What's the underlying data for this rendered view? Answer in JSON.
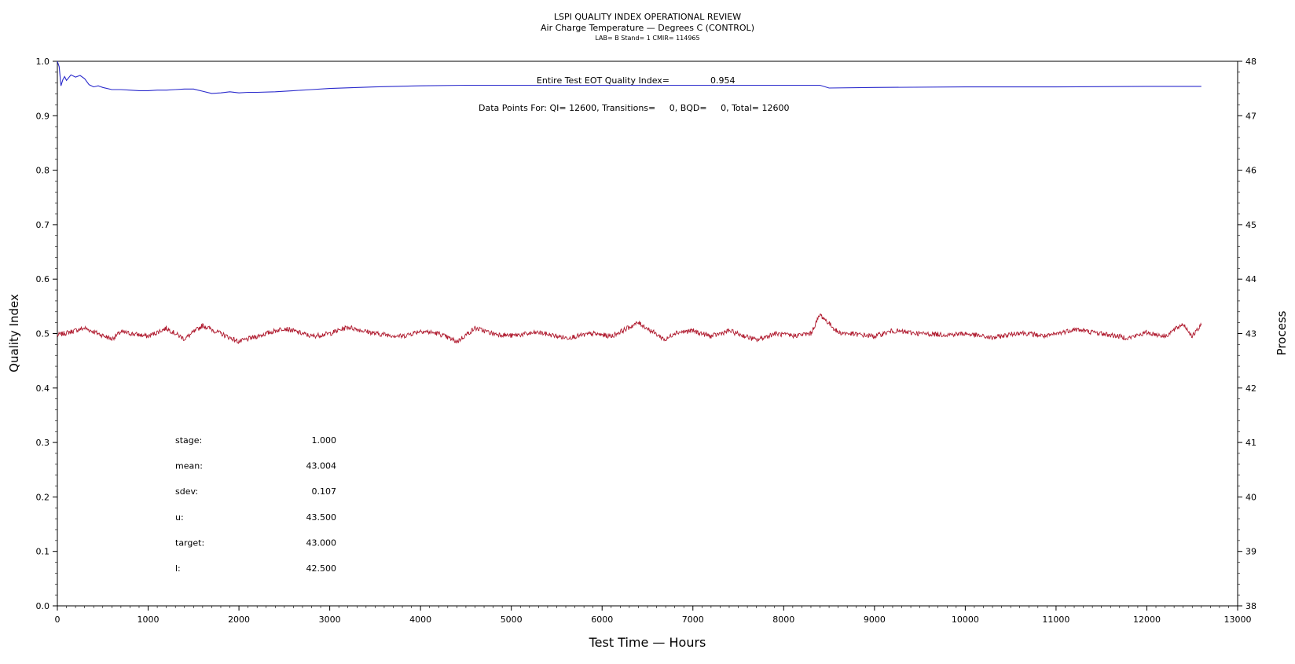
{
  "chart_data": {
    "type": "line",
    "title": "LSPI QUALITY INDEX OPERATIONAL REVIEW",
    "subtitle": "Air Charge Temperature — Degrees C (CONTROL)",
    "subtitle2": "LAB= B Stand= 1 CMIR= 114965",
    "xlabel": "Test Time — Hours",
    "ylabel": "Quality Index",
    "y2label": "Process",
    "xlim": [
      0,
      13000
    ],
    "ylim": [
      0.0,
      1.0
    ],
    "y2lim": [
      38,
      48
    ],
    "xticks": [
      "0",
      "1000",
      "2000",
      "3000",
      "4000",
      "5000",
      "6000",
      "7000",
      "8000",
      "9000",
      "10000",
      "11000",
      "12000",
      "13000"
    ],
    "yticks": [
      "0.0",
      "0.1",
      "0.2",
      "0.3",
      "0.4",
      "0.5",
      "0.6",
      "0.7",
      "0.8",
      "0.9",
      "1.0"
    ],
    "y2ticks": [
      "38",
      "39",
      "40",
      "41",
      "42",
      "43",
      "44",
      "45",
      "46",
      "47",
      "48"
    ],
    "grid": false,
    "annotations": {
      "qi_label": "Entire Test EOT Quality Index=",
      "qi_value": "0.954",
      "points_text": "Data Points For: QI= 12600, Transitions=     0, BQD=     0, Total= 12600"
    },
    "stats": [
      {
        "label": "stage:",
        "value": "1.000"
      },
      {
        "label": "mean:",
        "value": "43.004"
      },
      {
        "label": "sdev:",
        "value": "0.107"
      },
      {
        "label": "u:",
        "value": "43.500"
      },
      {
        "label": "target:",
        "value": "43.000"
      },
      {
        "label": "l:",
        "value": "42.500"
      }
    ],
    "series": [
      {
        "color": "#2a2acc",
        "axis": "left",
        "x": [
          0,
          20,
          40,
          60,
          80,
          100,
          150,
          200,
          250,
          300,
          350,
          400,
          450,
          500,
          600,
          700,
          800,
          900,
          1000,
          1100,
          1200,
          1300,
          1400,
          1500,
          1600,
          1700,
          1800,
          1900,
          2000,
          2100,
          2200,
          2400,
          2600,
          2800,
          3000,
          3500,
          4000,
          4500,
          5000,
          5500,
          6000,
          6500,
          7000,
          7500,
          8000,
          8400,
          8500,
          9000,
          10000,
          11000,
          12000,
          12600
        ],
        "values": [
          1.0,
          0.99,
          0.955,
          0.966,
          0.972,
          0.965,
          0.975,
          0.971,
          0.974,
          0.968,
          0.957,
          0.953,
          0.955,
          0.952,
          0.948,
          0.948,
          0.947,
          0.946,
          0.946,
          0.947,
          0.947,
          0.948,
          0.949,
          0.949,
          0.945,
          0.941,
          0.942,
          0.944,
          0.942,
          0.943,
          0.943,
          0.944,
          0.946,
          0.948,
          0.95,
          0.953,
          0.955,
          0.956,
          0.956,
          0.956,
          0.956,
          0.956,
          0.956,
          0.956,
          0.956,
          0.956,
          0.951,
          0.952,
          0.953,
          0.953,
          0.954,
          0.954
        ]
      },
      {
        "color": "#b01c30",
        "axis": "right",
        "x": [
          0,
          300,
          600,
          700,
          1000,
          1200,
          1400,
          1600,
          1800,
          2000,
          2300,
          2500,
          2800,
          3000,
          3200,
          3500,
          3800,
          4000,
          4200,
          4400,
          4600,
          4800,
          5000,
          5300,
          5600,
          5900,
          6100,
          6400,
          6700,
          6800,
          7000,
          7200,
          7400,
          7700,
          7900,
          8100,
          8300,
          8400,
          8600,
          9000,
          9200,
          9500,
          9800,
          10000,
          10300,
          10600,
          10900,
          11200,
          11500,
          11800,
          12000,
          12200,
          12400,
          12500,
          12600
        ],
        "values": [
          42.97,
          43.1,
          42.9,
          43.03,
          42.95,
          43.1,
          42.9,
          43.15,
          43.0,
          42.85,
          43.0,
          43.1,
          42.95,
          43.0,
          43.12,
          43.0,
          42.95,
          43.05,
          43.0,
          42.85,
          43.1,
          43.0,
          42.96,
          43.02,
          42.92,
          43.0,
          42.95,
          43.2,
          42.88,
          43.02,
          43.05,
          42.95,
          43.05,
          42.88,
          43.0,
          42.96,
          43.0,
          43.35,
          43.02,
          42.95,
          43.05,
          43.0,
          42.98,
          43.0,
          42.92,
          43.02,
          42.95,
          43.08,
          43.0,
          42.92,
          43.02,
          42.95,
          43.18,
          42.95,
          43.15
        ]
      }
    ]
  }
}
